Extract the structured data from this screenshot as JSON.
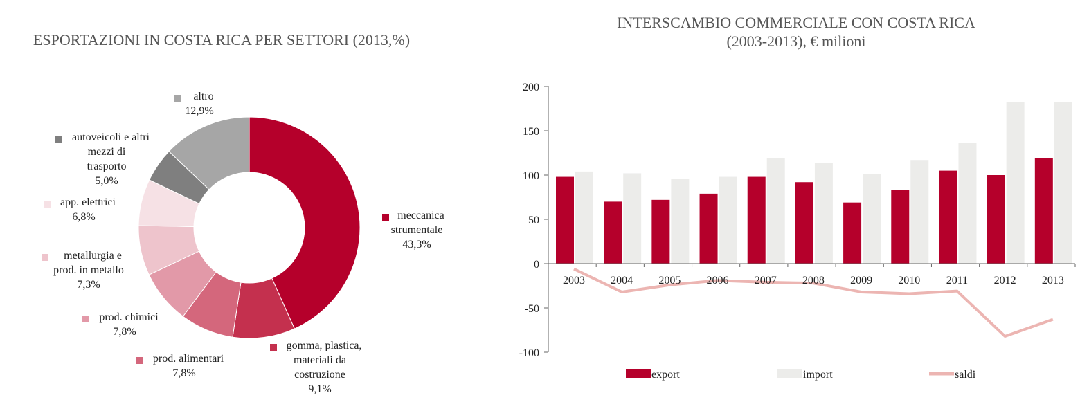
{
  "colors": {
    "export": "#b5002b",
    "import": "#ececea",
    "saldi": "#ecb5b2",
    "axis": "#666666"
  },
  "chart_data": [
    {
      "type": "pie",
      "variant": "donut",
      "title": "ESPORTAZIONI IN COSTA RICA PER SETTORI (2013,%)",
      "slices": [
        {
          "label_lines": [
            "meccanica",
            "strumentale"
          ],
          "value": 43.3,
          "value_label": "43,3%",
          "color": "#b5002b"
        },
        {
          "label_lines": [
            "gomma, plastica,",
            "materiali da",
            "costruzione"
          ],
          "value": 9.1,
          "value_label": "9,1%",
          "color": "#c4304e"
        },
        {
          "label_lines": [
            "prod. alimentari"
          ],
          "value": 7.8,
          "value_label": "7,8%",
          "color": "#d4677c"
        },
        {
          "label_lines": [
            "prod. chimici"
          ],
          "value": 7.8,
          "value_label": "7,8%",
          "color": "#e299a8"
        },
        {
          "label_lines": [
            "metallurgia e",
            "prod. in metallo"
          ],
          "value": 7.3,
          "value_label": "7,3%",
          "color": "#eec4cc"
        },
        {
          "label_lines": [
            "app. elettrici"
          ],
          "value": 6.8,
          "value_label": "6,8%",
          "color": "#f6e1e5"
        },
        {
          "label_lines": [
            "autoveicoli e altri",
            "mezzi di",
            "trasporto"
          ],
          "value": 5.0,
          "value_label": "5,0%",
          "color": "#7f7f7f"
        },
        {
          "label_lines": [
            "altro"
          ],
          "value": 12.9,
          "value_label": "12,9%",
          "color": "#a6a6a6"
        }
      ]
    },
    {
      "type": "bar",
      "title_lines": [
        "INTERSCAMBIO COMMERCIALE CON COSTA RICA",
        "(2003-2013), € milioni"
      ],
      "categories": [
        "2003",
        "2004",
        "2005",
        "2006",
        "2007",
        "2008",
        "2009",
        "2010",
        "2011",
        "2012",
        "2013"
      ],
      "ylim": [
        -100,
        200
      ],
      "yticks": [
        -100,
        -50,
        0,
        50,
        100,
        150,
        200
      ],
      "series": [
        {
          "name": "export",
          "type": "bar",
          "values": [
            98,
            70,
            72,
            79,
            98,
            92,
            69,
            83,
            105,
            100,
            119
          ]
        },
        {
          "name": "import",
          "type": "bar",
          "values": [
            104,
            102,
            96,
            98,
            119,
            114,
            101,
            117,
            136,
            182,
            182
          ]
        },
        {
          "name": "saldi",
          "type": "line",
          "values": [
            -6,
            -32,
            -24,
            -19,
            -21,
            -22,
            -32,
            -34,
            -31,
            -82,
            -63
          ]
        }
      ]
    }
  ]
}
